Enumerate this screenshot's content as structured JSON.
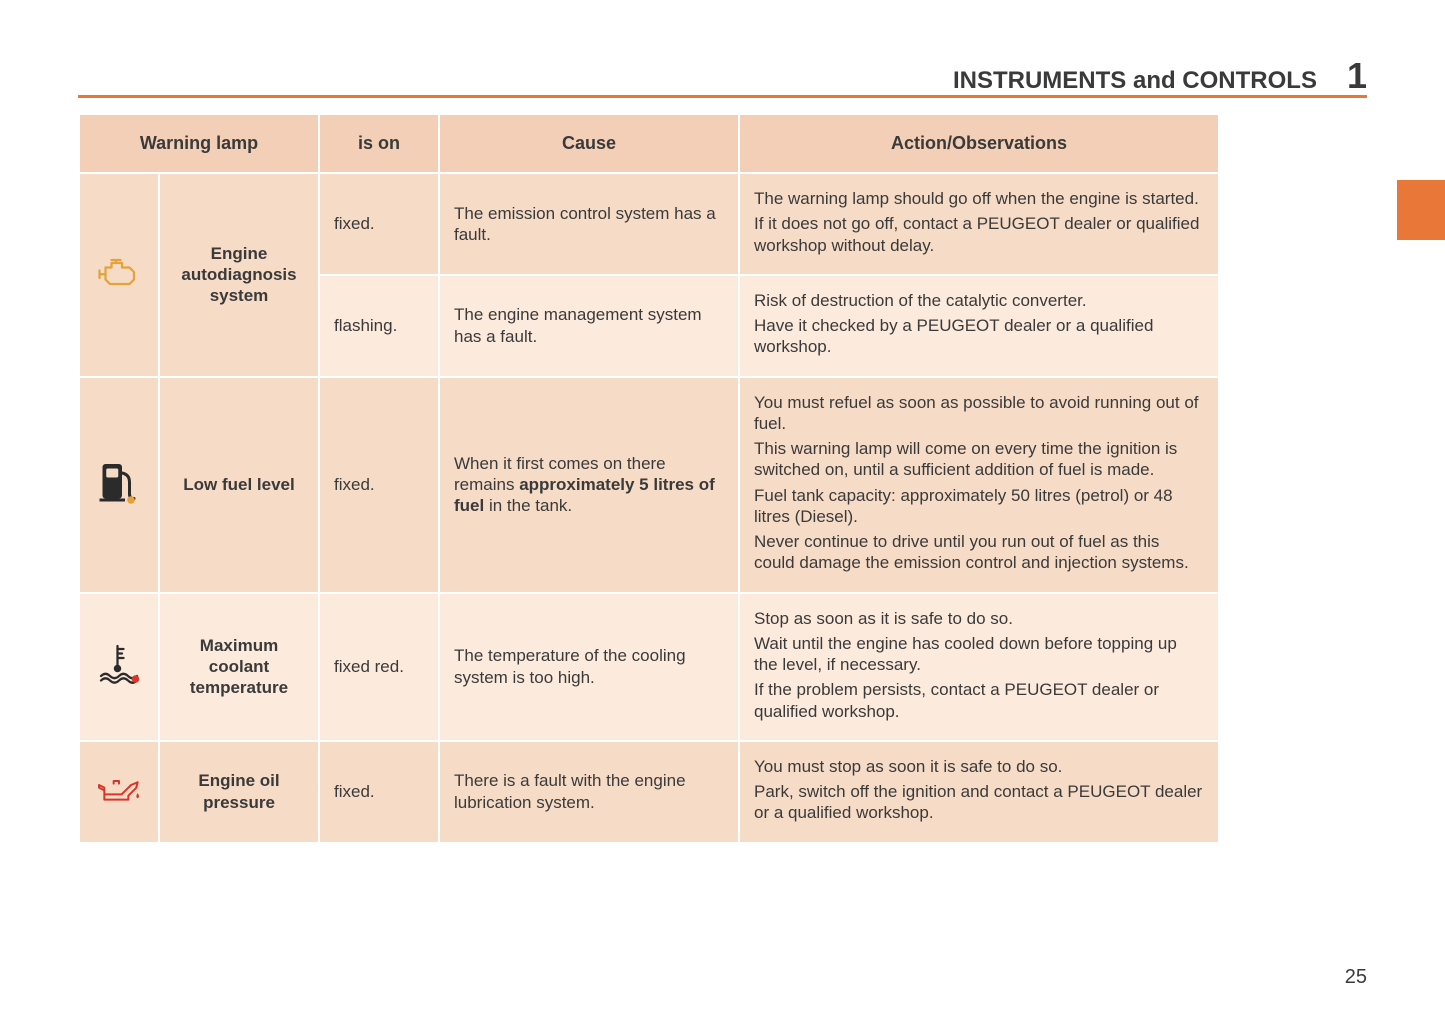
{
  "header": {
    "title": "INSTRUMENTS and CONTROLS",
    "chapter_number": "1"
  },
  "side_tab_color": "#e97838",
  "rule_color": "#e97838",
  "table": {
    "header_bg": "#f3cfb7",
    "shade_a_bg": "#f6dbc7",
    "shade_b_bg": "#fceadd",
    "columns": [
      {
        "key": "warning_lamp",
        "label": "Warning lamp",
        "span": 2
      },
      {
        "key": "is_on",
        "label": "is on"
      },
      {
        "key": "cause",
        "label": "Cause"
      },
      {
        "key": "action",
        "label": "Action/Observations"
      }
    ],
    "rows": [
      {
        "shade": "a",
        "icon": "engine-icon",
        "icon_color": "#e5a23a",
        "lamp_label": "Engine autodiagnosis system",
        "lamp_rowspan": 2,
        "is_on": "fixed.",
        "cause_html": "The emission control system has a fault.",
        "action_html": "The warning lamp should go off when the engine is started.|If it does not go off, contact a PEUGEOT dealer or qualified workshop without delay."
      },
      {
        "shade": "b",
        "is_on": "flashing.",
        "cause_html": "The engine management system has a fault.",
        "action_html": "Risk of destruction of the catalytic converter.|Have it checked by a PEUGEOT dealer or a qualified workshop."
      },
      {
        "shade": "a",
        "icon": "fuel-pump-icon",
        "icon_color": "#2b2b2b",
        "icon_dot_color": "#e5a23a",
        "lamp_label": "Low fuel level",
        "is_on": "fixed.",
        "cause_html": "When it first comes on there remains <b>approximately 5 litres of fuel</b> in the tank.",
        "action_html": "You must refuel as soon as possible to avoid running out of fuel.|This warning lamp will come on every time the ignition is switched on, until a sufficient addition of fuel is made.|Fuel tank capacity: approximately 50 litres (petrol) or 48 litres (Diesel).|Never continue to drive until you run out of fuel as this could damage the emission control and injection systems."
      },
      {
        "shade": "b",
        "icon": "coolant-temp-icon",
        "icon_color": "#2b2b2b",
        "icon_dot_color": "#d9362a",
        "lamp_label": "Maximum coolant temperature",
        "is_on": "fixed red.",
        "cause_html": "The temperature of the cooling system is too high.",
        "action_html": "Stop as soon as it is safe to do so.|Wait until the engine has cooled down before topping up the level, if necessary.|If the problem persists, contact a PEUGEOT dealer or qualified workshop."
      },
      {
        "shade": "a",
        "icon": "oil-can-icon",
        "icon_color": "#d9362a",
        "lamp_label": "Engine oil pressure",
        "is_on": "fixed.",
        "cause_html": "There is a fault with the engine lubrication system.",
        "action_html": "You must stop as soon it is safe to do so.|Park, switch off the ignition and contact a PEUGEOT dealer or a qualified workshop."
      }
    ]
  },
  "page_number": "25"
}
